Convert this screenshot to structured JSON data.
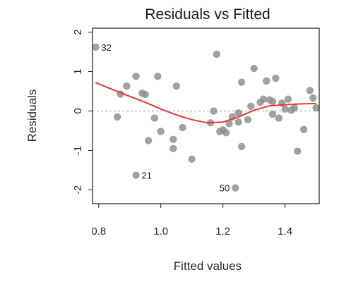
{
  "chart_data": {
    "type": "scatter",
    "title": "Residuals vs Fitted",
    "xlabel": "Fitted values",
    "ylabel": "Residuals",
    "xlim": [
      0.78,
      1.51
    ],
    "ylim": [
      -2.35,
      2.1
    ],
    "xticks": [
      "0.8",
      "1.0",
      "1.2",
      "1.4"
    ],
    "yticks": [
      "-2",
      "-1",
      "0",
      "1",
      "2"
    ],
    "grid": false,
    "reference_line": 0,
    "point_color": "#8c8c8c",
    "smooth_color": "#e53935",
    "reference_color": "#bdbdbd",
    "points": [
      {
        "x": 0.79,
        "y": 1.62
      },
      {
        "x": 0.86,
        "y": -0.15
      },
      {
        "x": 0.87,
        "y": 0.43
      },
      {
        "x": 0.89,
        "y": 0.63
      },
      {
        "x": 0.92,
        "y": 0.88
      },
      {
        "x": 0.92,
        "y": -1.63
      },
      {
        "x": 0.94,
        "y": 0.45
      },
      {
        "x": 0.95,
        "y": 0.42
      },
      {
        "x": 0.96,
        "y": -0.75
      },
      {
        "x": 0.98,
        "y": -0.18
      },
      {
        "x": 0.99,
        "y": 0.88
      },
      {
        "x": 1.0,
        "y": -0.52
      },
      {
        "x": 1.04,
        "y": -0.72
      },
      {
        "x": 1.04,
        "y": -0.95
      },
      {
        "x": 1.05,
        "y": 0.63
      },
      {
        "x": 1.07,
        "y": -0.42
      },
      {
        "x": 1.1,
        "y": -1.22
      },
      {
        "x": 1.16,
        "y": -0.3
      },
      {
        "x": 1.17,
        "y": 0.0
      },
      {
        "x": 1.18,
        "y": 1.44
      },
      {
        "x": 1.19,
        "y": -0.52
      },
      {
        "x": 1.2,
        "y": -0.48
      },
      {
        "x": 1.21,
        "y": -0.55
      },
      {
        "x": 1.22,
        "y": -0.32
      },
      {
        "x": 1.23,
        "y": -0.15
      },
      {
        "x": 1.24,
        "y": -1.95
      },
      {
        "x": 1.25,
        "y": -0.05
      },
      {
        "x": 1.25,
        "y": -0.28
      },
      {
        "x": 1.26,
        "y": -0.9
      },
      {
        "x": 1.26,
        "y": 0.73
      },
      {
        "x": 1.28,
        "y": -0.22
      },
      {
        "x": 1.29,
        "y": 0.12
      },
      {
        "x": 1.3,
        "y": 1.08
      },
      {
        "x": 1.32,
        "y": 0.22
      },
      {
        "x": 1.33,
        "y": 0.3
      },
      {
        "x": 1.34,
        "y": 0.76
      },
      {
        "x": 1.35,
        "y": 0.28
      },
      {
        "x": 1.36,
        "y": 0.24
      },
      {
        "x": 1.36,
        "y": -0.08
      },
      {
        "x": 1.37,
        "y": 0.83
      },
      {
        "x": 1.38,
        "y": -0.18
      },
      {
        "x": 1.39,
        "y": 0.2
      },
      {
        "x": 1.4,
        "y": 0.05
      },
      {
        "x": 1.41,
        "y": 0.3
      },
      {
        "x": 1.42,
        "y": 0.02
      },
      {
        "x": 1.43,
        "y": 0.08
      },
      {
        "x": 1.44,
        "y": -1.02
      },
      {
        "x": 1.46,
        "y": -0.47
      },
      {
        "x": 1.48,
        "y": 0.52
      },
      {
        "x": 1.49,
        "y": 0.33
      },
      {
        "x": 1.5,
        "y": 0.08
      }
    ],
    "smooth_line": [
      {
        "x": 0.79,
        "y": 0.72
      },
      {
        "x": 0.84,
        "y": 0.56
      },
      {
        "x": 0.89,
        "y": 0.4
      },
      {
        "x": 0.95,
        "y": 0.22
      },
      {
        "x": 1.0,
        "y": 0.05
      },
      {
        "x": 1.05,
        "y": -0.1
      },
      {
        "x": 1.1,
        "y": -0.22
      },
      {
        "x": 1.15,
        "y": -0.3
      },
      {
        "x": 1.2,
        "y": -0.28
      },
      {
        "x": 1.25,
        "y": -0.15
      },
      {
        "x": 1.3,
        "y": 0.02
      },
      {
        "x": 1.35,
        "y": 0.13
      },
      {
        "x": 1.4,
        "y": 0.16
      },
      {
        "x": 1.45,
        "y": 0.18
      },
      {
        "x": 1.5,
        "y": 0.19
      }
    ],
    "labeled_points": [
      {
        "label": "32",
        "x": 0.79,
        "y": 1.62,
        "anchor": "right"
      },
      {
        "label": "21",
        "x": 0.92,
        "y": -1.63,
        "anchor": "right"
      },
      {
        "label": "50",
        "x": 1.24,
        "y": -1.95,
        "anchor": "left"
      }
    ]
  }
}
